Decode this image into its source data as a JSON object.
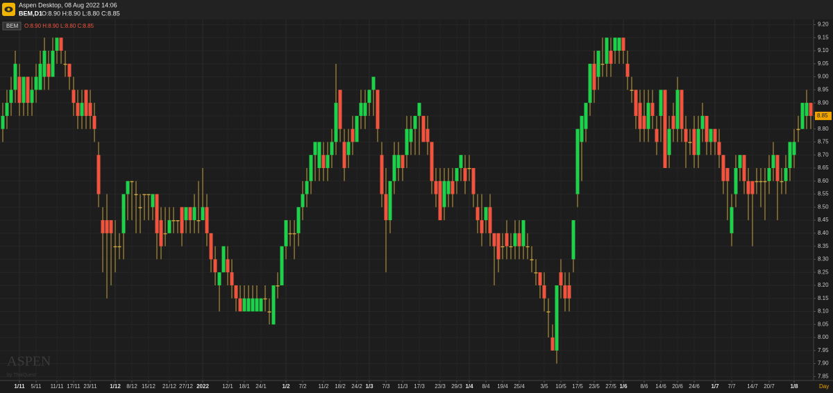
{
  "header": {
    "app": "Aspen Desktop, 08 Aug 2022 14:06",
    "symbol": "BEM,D1",
    "ohlc": "O:8.90 H:8.90 L:8.80 C:8.85"
  },
  "watermark": {
    "brand": "ASPEN",
    "by": "by ThaiQuest"
  },
  "chart_data": {
    "type": "candlestick",
    "symbol": "BEM",
    "legend": "O:8.90 H:8.90 L:8.80 C:8.85",
    "period": "Day",
    "up_color": "#1fd04a",
    "down_color": "#f0533e",
    "wick_color": "#c9a23c",
    "last_price": 8.85,
    "last_price_color": "#f0a400",
    "grid": true,
    "ylim": [
      7.835,
      9.22
    ],
    "yticks": [
      {
        "value": 9.2,
        "label": "9.20"
      },
      9.15,
      {
        "value": 9.1,
        "label": "9.10"
      },
      9.05,
      {
        "value": 9.0,
        "label": "9.00"
      },
      8.95,
      {
        "value": 8.9,
        "label": "8.90"
      },
      8.85,
      {
        "value": 8.8,
        "label": "8.80"
      },
      8.75,
      {
        "value": 8.7,
        "label": "8.70"
      },
      8.65,
      {
        "value": 8.6,
        "label": "8.60"
      },
      8.55,
      {
        "value": 8.5,
        "label": "8.50"
      },
      8.45,
      {
        "value": 8.4,
        "label": "8.40"
      },
      8.35,
      {
        "value": 8.3,
        "label": "8.30"
      },
      8.25,
      {
        "value": 8.2,
        "label": "8.20"
      },
      8.15,
      {
        "value": 8.1,
        "label": "8.10"
      },
      8.05,
      {
        "value": 8.0,
        "label": "8.00"
      },
      7.95,
      {
        "value": 7.9,
        "label": "7.90"
      },
      7.85
    ],
    "categories": [
      null,
      null,
      null,
      null,
      "1/11",
      null,
      null,
      null,
      "5/11",
      null,
      null,
      null,
      null,
      "11/11",
      null,
      null,
      null,
      "17/11",
      null,
      null,
      null,
      "23/11",
      null,
      null,
      null,
      null,
      null,
      "1/12",
      null,
      null,
      null,
      "8/12",
      null,
      null,
      null,
      "15/12",
      null,
      null,
      null,
      null,
      "21/12",
      null,
      null,
      null,
      "27/12",
      null,
      null,
      null,
      "2022",
      null,
      null,
      null,
      null,
      null,
      "12/1",
      null,
      null,
      null,
      "18/1",
      null,
      null,
      null,
      "24/1",
      null,
      null,
      null,
      null,
      null,
      "1/2",
      null,
      null,
      null,
      "7/2",
      null,
      null,
      null,
      null,
      "11/2",
      null,
      null,
      null,
      "18/2",
      null,
      null,
      null,
      "24/2",
      null,
      null,
      "1/3",
      null,
      null,
      null,
      "7/3",
      null,
      null,
      null,
      "11/3",
      null,
      null,
      null,
      "17/3",
      null,
      null,
      null,
      null,
      "23/3",
      null,
      null,
      null,
      "29/3",
      null,
      null,
      "1/4",
      null,
      null,
      null,
      "8/4",
      null,
      null,
      null,
      "19/4",
      null,
      null,
      null,
      "25/4",
      null,
      null,
      null,
      null,
      null,
      "3/5",
      null,
      null,
      null,
      "10/5",
      null,
      null,
      null,
      "17/5",
      null,
      null,
      null,
      "23/5",
      null,
      null,
      null,
      "27/5",
      null,
      null,
      "1/6",
      null,
      null,
      null,
      null,
      "8/6",
      null,
      null,
      null,
      "14/6",
      null,
      null,
      null,
      "20/6",
      null,
      null,
      null,
      "24/6",
      null,
      null,
      null,
      null,
      "1/7",
      null,
      null,
      null,
      "7/7",
      null,
      null,
      null,
      null,
      "14/7",
      null,
      null,
      null,
      "20/7",
      null,
      null,
      null,
      null,
      null,
      "1/8",
      null,
      null,
      null,
      null
    ],
    "ohlc": [
      [
        8.8,
        8.9,
        8.75,
        8.85
      ],
      [
        8.85,
        8.95,
        8.8,
        8.9
      ],
      [
        8.9,
        9.0,
        8.85,
        8.95
      ],
      [
        8.95,
        9.1,
        8.9,
        9.05
      ],
      [
        9.0,
        9.05,
        8.85,
        8.9
      ],
      [
        8.9,
        9.0,
        8.85,
        9.0
      ],
      [
        9.0,
        9.0,
        8.85,
        8.9
      ],
      [
        8.9,
        9.0,
        8.85,
        8.95
      ],
      [
        8.95,
        9.05,
        8.9,
        9.0
      ],
      [
        8.95,
        9.1,
        8.95,
        9.05
      ],
      [
        9.0,
        9.15,
        8.95,
        9.1
      ],
      [
        9.05,
        9.1,
        8.95,
        9.0
      ],
      [
        9.0,
        9.15,
        9.0,
        9.1
      ],
      [
        9.1,
        9.15,
        9.05,
        9.15
      ],
      [
        9.15,
        9.15,
        9.05,
        9.1
      ],
      [
        9.05,
        9.1,
        9.0,
        9.05
      ],
      [
        9.05,
        9.05,
        8.95,
        9.0
      ],
      [
        8.95,
        9.0,
        8.85,
        8.9
      ],
      [
        8.9,
        8.95,
        8.8,
        8.85
      ],
      [
        8.85,
        8.95,
        8.8,
        8.9
      ],
      [
        8.95,
        8.95,
        8.8,
        8.85
      ],
      [
        8.9,
        8.95,
        8.8,
        8.85
      ],
      [
        8.85,
        8.9,
        8.75,
        8.8
      ],
      [
        8.7,
        8.75,
        8.5,
        8.55
      ],
      [
        8.45,
        8.5,
        8.25,
        8.4
      ],
      [
        8.45,
        8.55,
        8.15,
        8.4
      ],
      [
        8.45,
        8.45,
        8.2,
        8.4
      ],
      [
        8.35,
        8.45,
        8.25,
        8.35
      ],
      [
        8.35,
        8.4,
        8.3,
        8.35
      ],
      [
        8.4,
        8.55,
        8.3,
        8.55
      ],
      [
        8.55,
        8.6,
        8.45,
        8.6
      ],
      [
        8.6,
        8.6,
        8.45,
        8.6
      ],
      [
        8.55,
        8.6,
        8.4,
        8.55
      ],
      [
        8.5,
        8.55,
        8.4,
        8.5
      ],
      [
        8.55,
        8.55,
        8.45,
        8.55
      ],
      [
        8.55,
        8.55,
        8.45,
        8.55
      ],
      [
        8.5,
        8.55,
        8.45,
        8.55
      ],
      [
        8.55,
        8.55,
        8.3,
        8.4
      ],
      [
        8.45,
        8.5,
        8.3,
        8.35
      ],
      [
        8.4,
        8.5,
        8.35,
        8.4
      ],
      [
        8.4,
        8.5,
        8.4,
        8.45
      ],
      [
        8.45,
        8.5,
        8.4,
        8.45
      ],
      [
        8.45,
        8.45,
        8.4,
        8.45
      ],
      [
        8.5,
        8.5,
        8.35,
        8.4
      ],
      [
        8.45,
        8.5,
        8.4,
        8.5
      ],
      [
        8.5,
        8.5,
        8.4,
        8.45
      ],
      [
        8.45,
        8.55,
        8.4,
        8.5
      ],
      [
        8.45,
        8.6,
        8.4,
        8.45
      ],
      [
        8.45,
        8.65,
        8.45,
        8.5
      ],
      [
        8.5,
        8.55,
        8.35,
        8.4
      ],
      [
        8.4,
        8.4,
        8.25,
        8.3
      ],
      [
        8.3,
        8.35,
        8.2,
        8.25
      ],
      [
        8.2,
        8.25,
        8.1,
        8.25
      ],
      [
        8.25,
        8.35,
        8.25,
        8.35
      ],
      [
        8.3,
        8.35,
        8.2,
        8.25
      ],
      [
        8.25,
        8.3,
        8.15,
        8.2
      ],
      [
        8.2,
        8.2,
        8.1,
        8.15
      ],
      [
        8.15,
        8.2,
        8.1,
        8.1
      ],
      [
        8.1,
        8.2,
        8.1,
        8.15
      ],
      [
        8.1,
        8.2,
        8.1,
        8.15
      ],
      [
        8.1,
        8.2,
        8.1,
        8.15
      ],
      [
        8.1,
        8.2,
        8.1,
        8.15
      ],
      [
        8.1,
        8.15,
        8.1,
        8.15
      ],
      [
        8.15,
        8.2,
        8.1,
        8.15
      ],
      [
        8.1,
        8.15,
        8.05,
        8.1
      ],
      [
        8.05,
        8.2,
        8.05,
        8.2
      ],
      [
        8.2,
        8.25,
        8.15,
        8.2
      ],
      [
        8.2,
        8.35,
        8.2,
        8.35
      ],
      [
        8.35,
        8.45,
        8.3,
        8.45
      ],
      [
        8.4,
        8.45,
        8.35,
        8.4
      ],
      [
        8.4,
        8.45,
        8.3,
        8.4
      ],
      [
        8.4,
        8.5,
        8.35,
        8.5
      ],
      [
        8.5,
        8.6,
        8.45,
        8.55
      ],
      [
        8.55,
        8.65,
        8.5,
        8.6
      ],
      [
        8.6,
        8.7,
        8.55,
        8.7
      ],
      [
        8.7,
        8.75,
        8.6,
        8.75
      ],
      [
        8.65,
        8.75,
        8.6,
        8.75
      ],
      [
        8.7,
        8.75,
        8.6,
        8.65
      ],
      [
        8.65,
        8.75,
        8.6,
        8.7
      ],
      [
        8.7,
        8.8,
        8.65,
        8.75
      ],
      [
        8.75,
        9.05,
        8.7,
        8.9
      ],
      [
        8.95,
        8.95,
        8.75,
        8.8
      ],
      [
        8.75,
        8.8,
        8.6,
        8.65
      ],
      [
        8.7,
        8.8,
        8.65,
        8.75
      ],
      [
        8.8,
        8.85,
        8.7,
        8.75
      ],
      [
        8.75,
        8.85,
        8.75,
        8.85
      ],
      [
        8.85,
        8.95,
        8.8,
        8.9
      ],
      [
        8.85,
        8.95,
        8.8,
        8.9
      ],
      [
        8.9,
        8.95,
        8.85,
        8.95
      ],
      [
        8.95,
        9.0,
        8.85,
        9.0
      ],
      [
        8.95,
        8.95,
        8.75,
        8.8
      ],
      [
        8.7,
        8.75,
        8.5,
        8.55
      ],
      [
        8.55,
        8.65,
        8.25,
        8.45
      ],
      [
        8.45,
        8.6,
        8.4,
        8.6
      ],
      [
        8.6,
        8.75,
        8.55,
        8.7
      ],
      [
        8.65,
        8.75,
        8.6,
        8.7
      ],
      [
        8.7,
        8.7,
        8.6,
        8.65
      ],
      [
        8.7,
        8.85,
        8.65,
        8.8
      ],
      [
        8.75,
        8.85,
        8.7,
        8.8
      ],
      [
        8.8,
        8.85,
        8.7,
        8.85
      ],
      [
        8.85,
        8.9,
        8.7,
        8.9
      ],
      [
        8.85,
        8.85,
        8.75,
        8.75
      ],
      [
        8.8,
        8.85,
        8.7,
        8.75
      ],
      [
        8.75,
        8.75,
        8.55,
        8.6
      ],
      [
        8.6,
        8.65,
        8.5,
        8.55
      ],
      [
        8.6,
        8.65,
        8.45,
        8.45
      ],
      [
        8.5,
        8.65,
        8.45,
        8.6
      ],
      [
        8.55,
        8.65,
        8.5,
        8.6
      ],
      [
        8.6,
        8.65,
        8.5,
        8.55
      ],
      [
        8.6,
        8.65,
        8.55,
        8.65
      ],
      [
        8.65,
        8.7,
        8.6,
        8.7
      ],
      [
        8.65,
        8.7,
        8.55,
        8.6
      ],
      [
        8.65,
        8.7,
        8.6,
        8.65
      ],
      [
        8.65,
        8.65,
        8.5,
        8.55
      ],
      [
        8.5,
        8.55,
        8.4,
        8.45
      ],
      [
        8.45,
        8.55,
        8.35,
        8.4
      ],
      [
        8.45,
        8.5,
        8.4,
        8.5
      ],
      [
        8.5,
        8.55,
        8.35,
        8.4
      ],
      [
        8.4,
        8.4,
        8.2,
        8.35
      ],
      [
        8.4,
        8.4,
        8.25,
        8.3
      ],
      [
        8.35,
        8.4,
        8.3,
        8.35
      ],
      [
        8.4,
        8.45,
        8.3,
        8.35
      ],
      [
        8.35,
        8.4,
        8.3,
        8.35
      ],
      [
        8.35,
        8.45,
        8.3,
        8.4
      ],
      [
        8.4,
        8.45,
        8.3,
        8.35
      ],
      [
        8.35,
        8.45,
        8.3,
        8.45
      ],
      [
        8.35,
        8.4,
        8.3,
        8.35
      ],
      [
        8.3,
        8.35,
        8.25,
        8.3
      ],
      [
        8.25,
        8.3,
        8.2,
        8.25
      ],
      [
        8.25,
        8.25,
        8.15,
        8.2
      ],
      [
        8.2,
        8.25,
        8.1,
        8.15
      ],
      [
        8.1,
        8.15,
        8.0,
        8.1
      ],
      [
        8.0,
        8.05,
        7.95,
        7.95
      ],
      [
        7.95,
        8.2,
        7.9,
        8.2
      ],
      [
        8.25,
        8.3,
        8.15,
        8.2
      ],
      [
        8.2,
        8.25,
        8.1,
        8.15
      ],
      [
        8.2,
        8.25,
        8.1,
        8.15
      ],
      [
        8.3,
        8.45,
        8.25,
        8.45
      ],
      [
        8.55,
        8.8,
        8.5,
        8.8
      ],
      [
        8.75,
        8.85,
        8.6,
        8.85
      ],
      [
        8.8,
        8.9,
        8.75,
        8.9
      ],
      [
        8.9,
        9.05,
        8.85,
        9.05
      ],
      [
        9.05,
        9.1,
        8.9,
        8.95
      ],
      [
        9.0,
        9.1,
        8.95,
        9.1
      ],
      [
        9.05,
        9.15,
        9.0,
        9.05
      ],
      [
        9.05,
        9.15,
        9.0,
        9.15
      ],
      [
        9.1,
        9.15,
        9.0,
        9.05
      ],
      [
        9.1,
        9.15,
        9.05,
        9.15
      ],
      [
        9.1,
        9.15,
        9.05,
        9.15
      ],
      [
        9.15,
        9.15,
        9.05,
        9.1
      ],
      [
        9.05,
        9.1,
        8.95,
        9.0
      ],
      [
        8.95,
        9.0,
        8.9,
        8.95
      ],
      [
        8.95,
        8.95,
        8.8,
        8.85
      ],
      [
        8.9,
        8.95,
        8.75,
        8.8
      ],
      [
        8.85,
        8.95,
        8.75,
        8.8
      ],
      [
        8.8,
        8.95,
        8.75,
        8.9
      ],
      [
        8.9,
        8.95,
        8.8,
        8.85
      ],
      [
        8.8,
        8.85,
        8.7,
        8.75
      ],
      [
        8.85,
        8.95,
        8.75,
        8.95
      ],
      [
        8.95,
        8.95,
        8.65,
        8.65
      ],
      [
        8.7,
        8.85,
        8.65,
        8.8
      ],
      [
        8.85,
        8.9,
        8.75,
        8.8
      ],
      [
        8.8,
        9.0,
        8.75,
        8.95
      ],
      [
        8.95,
        8.95,
        8.75,
        8.8
      ],
      [
        8.8,
        8.85,
        8.65,
        8.75
      ],
      [
        8.75,
        8.8,
        8.7,
        8.75
      ],
      [
        8.8,
        8.85,
        8.65,
        8.7
      ],
      [
        8.7,
        8.85,
        8.65,
        8.8
      ],
      [
        8.8,
        8.9,
        8.75,
        8.85
      ],
      [
        8.85,
        8.85,
        8.7,
        8.75
      ],
      [
        8.75,
        8.8,
        8.7,
        8.8
      ],
      [
        8.8,
        8.8,
        8.7,
        8.75
      ],
      [
        8.75,
        8.8,
        8.65,
        8.7
      ],
      [
        8.7,
        8.7,
        8.55,
        8.6
      ],
      [
        8.65,
        8.65,
        8.45,
        8.6
      ],
      [
        8.4,
        8.55,
        8.35,
        8.5
      ],
      [
        8.55,
        8.7,
        8.5,
        8.65
      ],
      [
        8.65,
        8.7,
        8.6,
        8.7
      ],
      [
        8.7,
        8.7,
        8.55,
        8.6
      ],
      [
        8.6,
        8.65,
        8.45,
        8.55
      ],
      [
        8.6,
        8.6,
        8.35,
        8.55
      ],
      [
        8.6,
        8.65,
        8.55,
        8.6
      ],
      [
        8.6,
        8.65,
        8.5,
        8.6
      ],
      [
        8.6,
        8.65,
        8.45,
        8.6
      ],
      [
        8.6,
        8.7,
        8.55,
        8.65
      ],
      [
        8.65,
        8.75,
        8.6,
        8.7
      ],
      [
        8.7,
        8.7,
        8.45,
        8.6
      ],
      [
        8.6,
        8.65,
        8.55,
        8.6
      ],
      [
        8.6,
        8.7,
        8.55,
        8.65
      ],
      [
        8.65,
        8.75,
        8.6,
        8.75
      ],
      [
        8.7,
        8.8,
        8.65,
        8.75
      ],
      [
        8.8,
        8.85,
        8.75,
        8.8
      ],
      [
        8.8,
        8.9,
        8.8,
        8.9
      ],
      [
        8.85,
        8.95,
        8.8,
        8.9
      ],
      [
        8.9,
        8.9,
        8.8,
        8.85
      ]
    ]
  }
}
